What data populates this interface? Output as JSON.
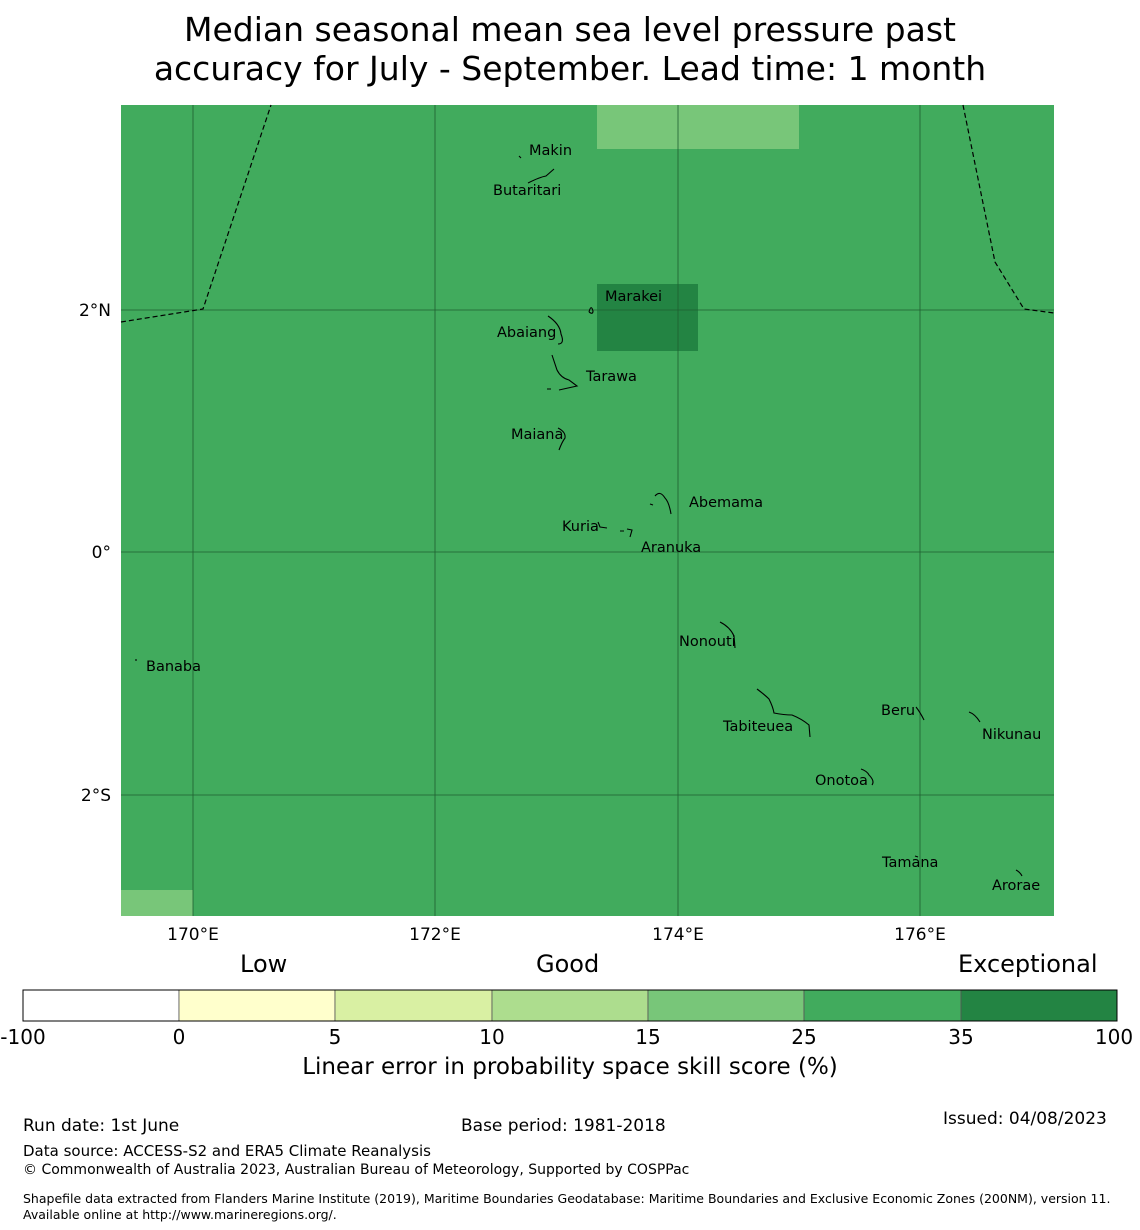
{
  "title": {
    "line1": "Median seasonal mean sea level pressure past",
    "line2": "accuracy for July - September. Lead time: 1 month"
  },
  "map": {
    "axes": {
      "lon_ticks": [
        "170°E",
        "172°E",
        "174°E",
        "176°E"
      ],
      "lat_ticks": [
        "2°N",
        "0°",
        "2°S"
      ]
    },
    "base_color": "#41ab5d",
    "cells": [
      {
        "category": "15-25",
        "color": "#78c679"
      },
      {
        "category": "35-100",
        "color": "#238443"
      },
      {
        "category": "15-25",
        "color": "#78c679"
      }
    ],
    "islands": [
      "Makin",
      "Butaritari",
      "Marakei",
      "Abaiang",
      "Tarawa",
      "Maiana",
      "Abemama",
      "Kuria",
      "Aranuka",
      "Banaba",
      "Nonouti",
      "Beru",
      "Tabiteuea",
      "Nikunau",
      "Onotoa",
      "Tamana",
      "Arorae"
    ]
  },
  "colorbar": {
    "qualitative": {
      "low": "Low",
      "good": "Good",
      "exceptional": "Exceptional"
    },
    "ticks": [
      "-100",
      "0",
      "5",
      "10",
      "15",
      "25",
      "35",
      "100"
    ],
    "colors": [
      "#ffffff",
      "#ffffcc",
      "#d9f0a3",
      "#addd8e",
      "#78c679",
      "#41ab5d",
      "#238443"
    ],
    "label": "Linear error in probability space skill score (%)"
  },
  "footer": {
    "run_date": "Run date: 1st June",
    "base_period": "Base period: 1981-2018",
    "issued": "Issued: 04/08/2023",
    "data_source": "Data source: ACCESS-S2 and ERA5 Climate Reanalysis",
    "copyright": "© Commonwealth of Australia 2023, Australian Bureau of Meteorology, Supported by COSPPac",
    "shapefile": "Shapefile data extracted from Flanders Marine Institute (2019), Maritime Boundaries Geodatabase: Maritime Boundaries and Exclusive Economic Zones (200NM), version 11. Available online at http://www.marineregions.org/."
  }
}
